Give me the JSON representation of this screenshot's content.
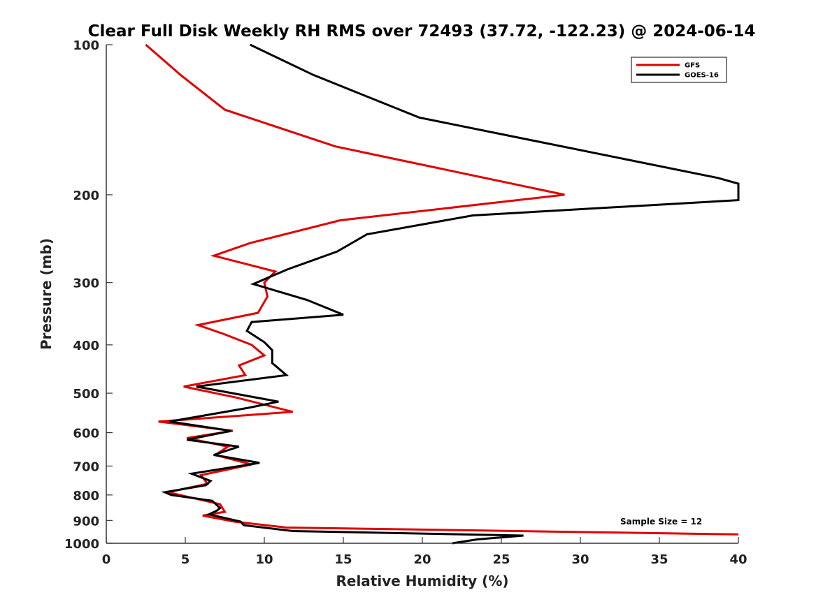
{
  "chart_data": {
    "type": "line",
    "title": "Clear Full Disk Weekly RH RMS over 72493 (37.72, -122.23) @ 2024-06-14",
    "xlabel": "Relative Humidity (%)",
    "ylabel": "Pressure (mb)",
    "xlim": [
      0,
      40
    ],
    "ylim": [
      100,
      1000
    ],
    "yscale": "log",
    "ydirection": "reversed",
    "xticks": [
      0,
      5,
      10,
      15,
      20,
      25,
      30,
      35,
      40
    ],
    "yticks": [
      100,
      200,
      300,
      400,
      500,
      600,
      700,
      800,
      900,
      1000
    ],
    "grid": false,
    "legend_position": "top-right",
    "annotation": "Sample Size = 12",
    "series": [
      {
        "name": "GFS",
        "color": "#e00000",
        "points": [
          [
            2.5,
            100
          ],
          [
            4.7,
            115
          ],
          [
            7.5,
            135
          ],
          [
            14.5,
            160
          ],
          [
            29.0,
            200
          ],
          [
            14.8,
            225
          ],
          [
            9.1,
            250
          ],
          [
            6.8,
            265
          ],
          [
            10.7,
            285
          ],
          [
            10.0,
            300
          ],
          [
            10.2,
            320
          ],
          [
            9.6,
            345
          ],
          [
            5.8,
            365
          ],
          [
            7.4,
            380
          ],
          [
            9.2,
            400
          ],
          [
            10.0,
            420
          ],
          [
            8.4,
            440
          ],
          [
            8.8,
            460
          ],
          [
            4.9,
            485
          ],
          [
            8.2,
            510
          ],
          [
            11.8,
            545
          ],
          [
            3.3,
            570
          ],
          [
            8.0,
            595
          ],
          [
            5.1,
            615
          ],
          [
            7.7,
            640
          ],
          [
            6.9,
            665
          ],
          [
            9.2,
            695
          ],
          [
            6.0,
            730
          ],
          [
            6.4,
            760
          ],
          [
            3.9,
            790
          ],
          [
            7.2,
            835
          ],
          [
            7.5,
            865
          ],
          [
            6.1,
            880
          ],
          [
            8.1,
            905
          ],
          [
            11.4,
            930
          ],
          [
            40.0,
            960
          ]
        ]
      },
      {
        "name": "GOES-16",
        "color": "#000000",
        "points": [
          [
            9.1,
            100
          ],
          [
            13.1,
            115
          ],
          [
            19.8,
            140
          ],
          [
            38.7,
            185
          ],
          [
            40.0,
            190
          ],
          [
            40.0,
            205
          ],
          [
            23.2,
            220
          ],
          [
            16.5,
            240
          ],
          [
            14.6,
            260
          ],
          [
            11.5,
            282
          ],
          [
            9.3,
            302
          ],
          [
            12.7,
            325
          ],
          [
            15.0,
            348
          ],
          [
            9.2,
            360
          ],
          [
            8.9,
            375
          ],
          [
            10.0,
            395
          ],
          [
            10.5,
            410
          ],
          [
            10.5,
            435
          ],
          [
            11.4,
            460
          ],
          [
            5.7,
            485
          ],
          [
            10.9,
            520
          ],
          [
            9.0,
            535
          ],
          [
            4.0,
            570
          ],
          [
            7.9,
            595
          ],
          [
            5.1,
            620
          ],
          [
            8.4,
            640
          ],
          [
            6.8,
            665
          ],
          [
            9.7,
            690
          ],
          [
            5.4,
            725
          ],
          [
            6.6,
            750
          ],
          [
            6.3,
            765
          ],
          [
            3.7,
            790
          ],
          [
            4.1,
            800
          ],
          [
            6.7,
            822
          ],
          [
            7.2,
            850
          ],
          [
            7.0,
            860
          ],
          [
            6.5,
            875
          ],
          [
            8.5,
            905
          ],
          [
            8.7,
            920
          ],
          [
            11.8,
            945
          ],
          [
            26.4,
            965
          ],
          [
            23.5,
            982
          ],
          [
            21.9,
            1000
          ]
        ]
      }
    ]
  }
}
